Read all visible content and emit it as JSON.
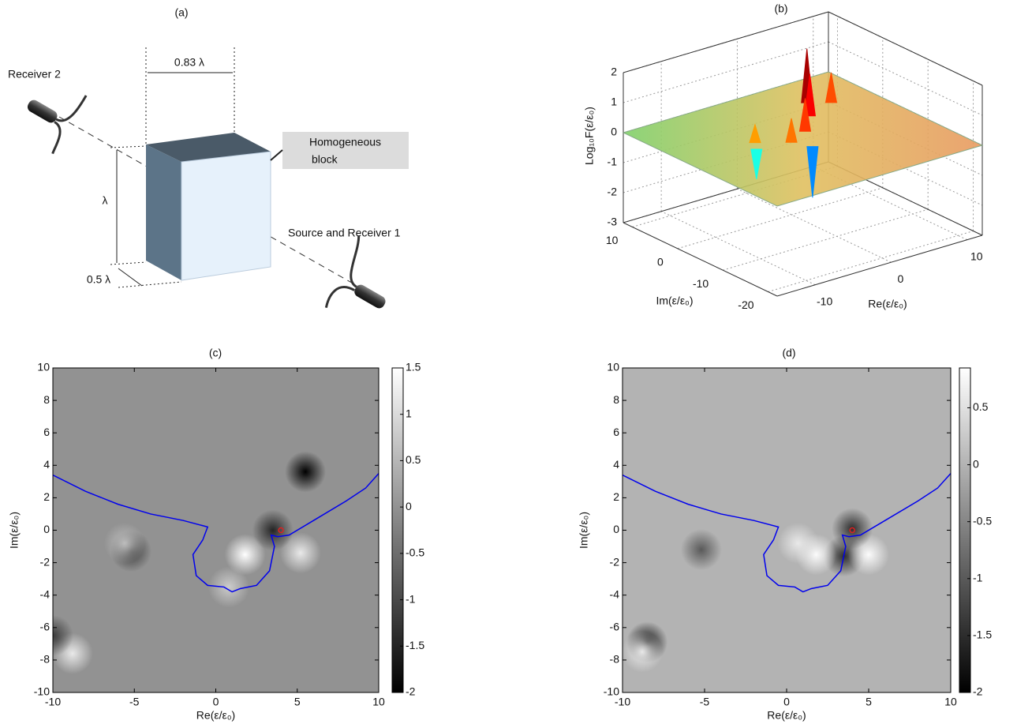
{
  "diagram": {
    "label": "(a)",
    "width_label": "0.83 λ",
    "height_label": "λ",
    "depth_label": "0.5 λ",
    "receiver2": "Receiver 2",
    "source": "Source and Receiver 1",
    "block_label": [
      "Homogeneous",
      "block"
    ]
  },
  "chart_data": [
    {
      "type": "surface3d",
      "title": "(b)",
      "xlabel": "Re(ε/ε₀)",
      "ylabel": "Im(ε/ε₀)",
      "zlabel": "Log₁₀F(ε/ε₀)",
      "xlim": [
        -15,
        12
      ],
      "ylim": [
        -22,
        12
      ],
      "zlim": [
        -3,
        2
      ],
      "xticks": [
        -10,
        0,
        10
      ],
      "yticks": [
        -20,
        -10,
        0,
        10
      ],
      "zticks": [
        -3,
        -2,
        -1,
        0,
        1,
        2
      ],
      "grid": true,
      "peaks": [
        {
          "x": 5,
          "y": 5,
          "z": 1.8
        },
        {
          "x": 3,
          "y": 1,
          "z": 1.4
        },
        {
          "x": 7,
          "y": 3,
          "z": 1.0
        },
        {
          "x": 0,
          "y": -3,
          "z": 1.1
        },
        {
          "x": -3,
          "y": -5,
          "z": 0.8
        },
        {
          "x": -6,
          "y": -2,
          "z": 0.6
        },
        {
          "x": -2,
          "y": -8,
          "z": -1.7
        },
        {
          "x": -7,
          "y": -4,
          "z": -1.0
        }
      ]
    },
    {
      "type": "heatmap",
      "title": "(c)",
      "xlabel": "Re(ε/ε₀)",
      "ylabel": "Im(ε/ε₀)",
      "xlim": [
        -10,
        10
      ],
      "ylim": [
        -10,
        10
      ],
      "xticks": [
        -10,
        -5,
        0,
        5,
        10
      ],
      "yticks": [
        -10,
        -8,
        -6,
        -4,
        -2,
        0,
        2,
        4,
        6,
        8,
        10
      ],
      "clim": [
        -2,
        1.5
      ],
      "cticks": [
        -2,
        -1.5,
        -1,
        -0.5,
        0,
        0.5,
        1,
        1.5
      ],
      "background": 0,
      "spots": [
        {
          "x": 5.5,
          "y": 3.6,
          "value": -2
        },
        {
          "x": -5.2,
          "y": -1.3,
          "value": -1.2
        },
        {
          "x": -5.6,
          "y": -0.8,
          "value": 0.6
        },
        {
          "x": 1.8,
          "y": -1.5,
          "value": 1.5
        },
        {
          "x": 5.2,
          "y": -1.4,
          "value": 1.2
        },
        {
          "x": -8.8,
          "y": -7.6,
          "value": 1.2
        },
        {
          "x": -10,
          "y": -6.5,
          "value": -1.2
        },
        {
          "x": 3.5,
          "y": 0,
          "value": -1.5
        },
        {
          "x": 0.8,
          "y": -3.5,
          "value": 0.8
        }
      ],
      "curve": {
        "color": "#0000ee",
        "x": [
          -10,
          -8,
          -6,
          -4,
          -2,
          -0.5,
          -0.8,
          -1.4,
          -1.2,
          -0.5,
          0.5,
          1,
          1.5,
          2.5,
          3.3,
          3.6,
          3.4,
          3.8,
          4.5,
          6,
          8,
          9.2,
          10
        ],
        "y": [
          3.4,
          2.4,
          1.6,
          1.0,
          0.6,
          0.2,
          -0.6,
          -1.5,
          -2.8,
          -3.4,
          -3.5,
          -3.8,
          -3.6,
          -3.4,
          -2.5,
          -1.0,
          -0.3,
          -0.4,
          -0.3,
          0.6,
          1.8,
          2.6,
          3.5
        ]
      },
      "marker": {
        "x": 4,
        "y": 0,
        "color": "#e02020"
      }
    },
    {
      "type": "heatmap",
      "title": "(d)",
      "xlabel": "Re(ε/ε₀)",
      "ylabel": "Im(ε/ε₀)",
      "xlim": [
        -10,
        10
      ],
      "ylim": [
        -10,
        10
      ],
      "xticks": [
        -10,
        -5,
        0,
        5,
        10
      ],
      "yticks": [
        -10,
        -8,
        -6,
        -4,
        -2,
        0,
        2,
        4,
        6,
        8,
        10
      ],
      "clim": [
        -2,
        0.85
      ],
      "cticks": [
        -2,
        -1.5,
        -1,
        -0.5,
        0,
        0.5
      ],
      "background": 0,
      "spots": [
        {
          "x": 3.5,
          "y": -1.6,
          "value": -1.5
        },
        {
          "x": 1.8,
          "y": -1.5,
          "value": 0.8
        },
        {
          "x": 5,
          "y": -1.5,
          "value": 0.8
        },
        {
          "x": -8.5,
          "y": -6.9,
          "value": -1.8
        },
        {
          "x": -8.8,
          "y": -7.5,
          "value": 0.6
        },
        {
          "x": 0.7,
          "y": -0.8,
          "value": 0.6
        },
        {
          "x": -5.2,
          "y": -1.2,
          "value": -1
        },
        {
          "x": 4,
          "y": 0.1,
          "value": -1.5
        }
      ],
      "curve": {
        "color": "#0000ee",
        "x": [
          -10,
          -8,
          -6,
          -4,
          -2,
          -0.5,
          -0.8,
          -1.4,
          -1.2,
          -0.5,
          0.5,
          1,
          1.5,
          2.5,
          3.3,
          3.6,
          3.4,
          3.8,
          4.5,
          6,
          8,
          9.2,
          10
        ],
        "y": [
          3.4,
          2.4,
          1.6,
          1.0,
          0.6,
          0.2,
          -0.6,
          -1.5,
          -2.8,
          -3.4,
          -3.5,
          -3.8,
          -3.6,
          -3.4,
          -2.5,
          -1.0,
          -0.3,
          -0.4,
          -0.3,
          0.6,
          1.8,
          2.6,
          3.5
        ]
      },
      "marker": {
        "x": 4,
        "y": 0,
        "color": "#e02020"
      }
    }
  ]
}
